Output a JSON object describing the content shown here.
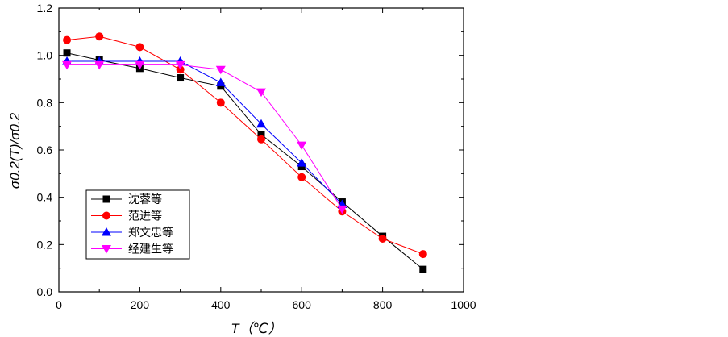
{
  "chart_data": {
    "type": "line",
    "xlabel": "T（℃）",
    "ylabel": "σ0.2(T)/σ0.2",
    "xlim": [
      0,
      1000
    ],
    "ylim": [
      0.0,
      1.2
    ],
    "x_ticks": [
      0,
      200,
      400,
      600,
      800,
      1000
    ],
    "y_ticks": [
      0.0,
      0.2,
      0.4,
      0.6,
      0.8,
      1.0,
      1.2
    ],
    "x_tick_labels": [
      "0",
      "200",
      "400",
      "600",
      "800",
      "1000"
    ],
    "y_tick_labels": [
      "0.0",
      "0.2",
      "0.4",
      "0.6",
      "0.8",
      "1.0",
      "1.2"
    ],
    "grid": false,
    "legend_position": "bottom-left",
    "series": [
      {
        "name": "沈蓉等",
        "color": "#000000",
        "marker": "square",
        "x": [
          20,
          100,
          200,
          300,
          400,
          500,
          600,
          700,
          800,
          900
        ],
        "y": [
          1.01,
          0.98,
          0.945,
          0.905,
          0.87,
          0.665,
          0.53,
          0.38,
          0.235,
          0.095
        ]
      },
      {
        "name": "范进等",
        "color": "#ff0000",
        "marker": "circle",
        "x": [
          20,
          100,
          200,
          300,
          400,
          500,
          600,
          700,
          800,
          900
        ],
        "y": [
          1.065,
          1.08,
          1.035,
          0.94,
          0.8,
          0.645,
          0.485,
          0.34,
          0.225,
          0.16
        ]
      },
      {
        "name": "郑文忠等",
        "color": "#0000ff",
        "marker": "triangle-up",
        "x": [
          20,
          100,
          200,
          300,
          400,
          500,
          600,
          700
        ],
        "y": [
          0.975,
          0.975,
          0.975,
          0.975,
          0.885,
          0.71,
          0.545,
          0.37
        ]
      },
      {
        "name": "经建生等",
        "color": "#ff00ff",
        "marker": "triangle-down",
        "x": [
          20,
          100,
          200,
          300,
          400,
          500,
          600,
          700
        ],
        "y": [
          0.96,
          0.96,
          0.96,
          0.96,
          0.94,
          0.845,
          0.62,
          0.35
        ]
      }
    ]
  }
}
